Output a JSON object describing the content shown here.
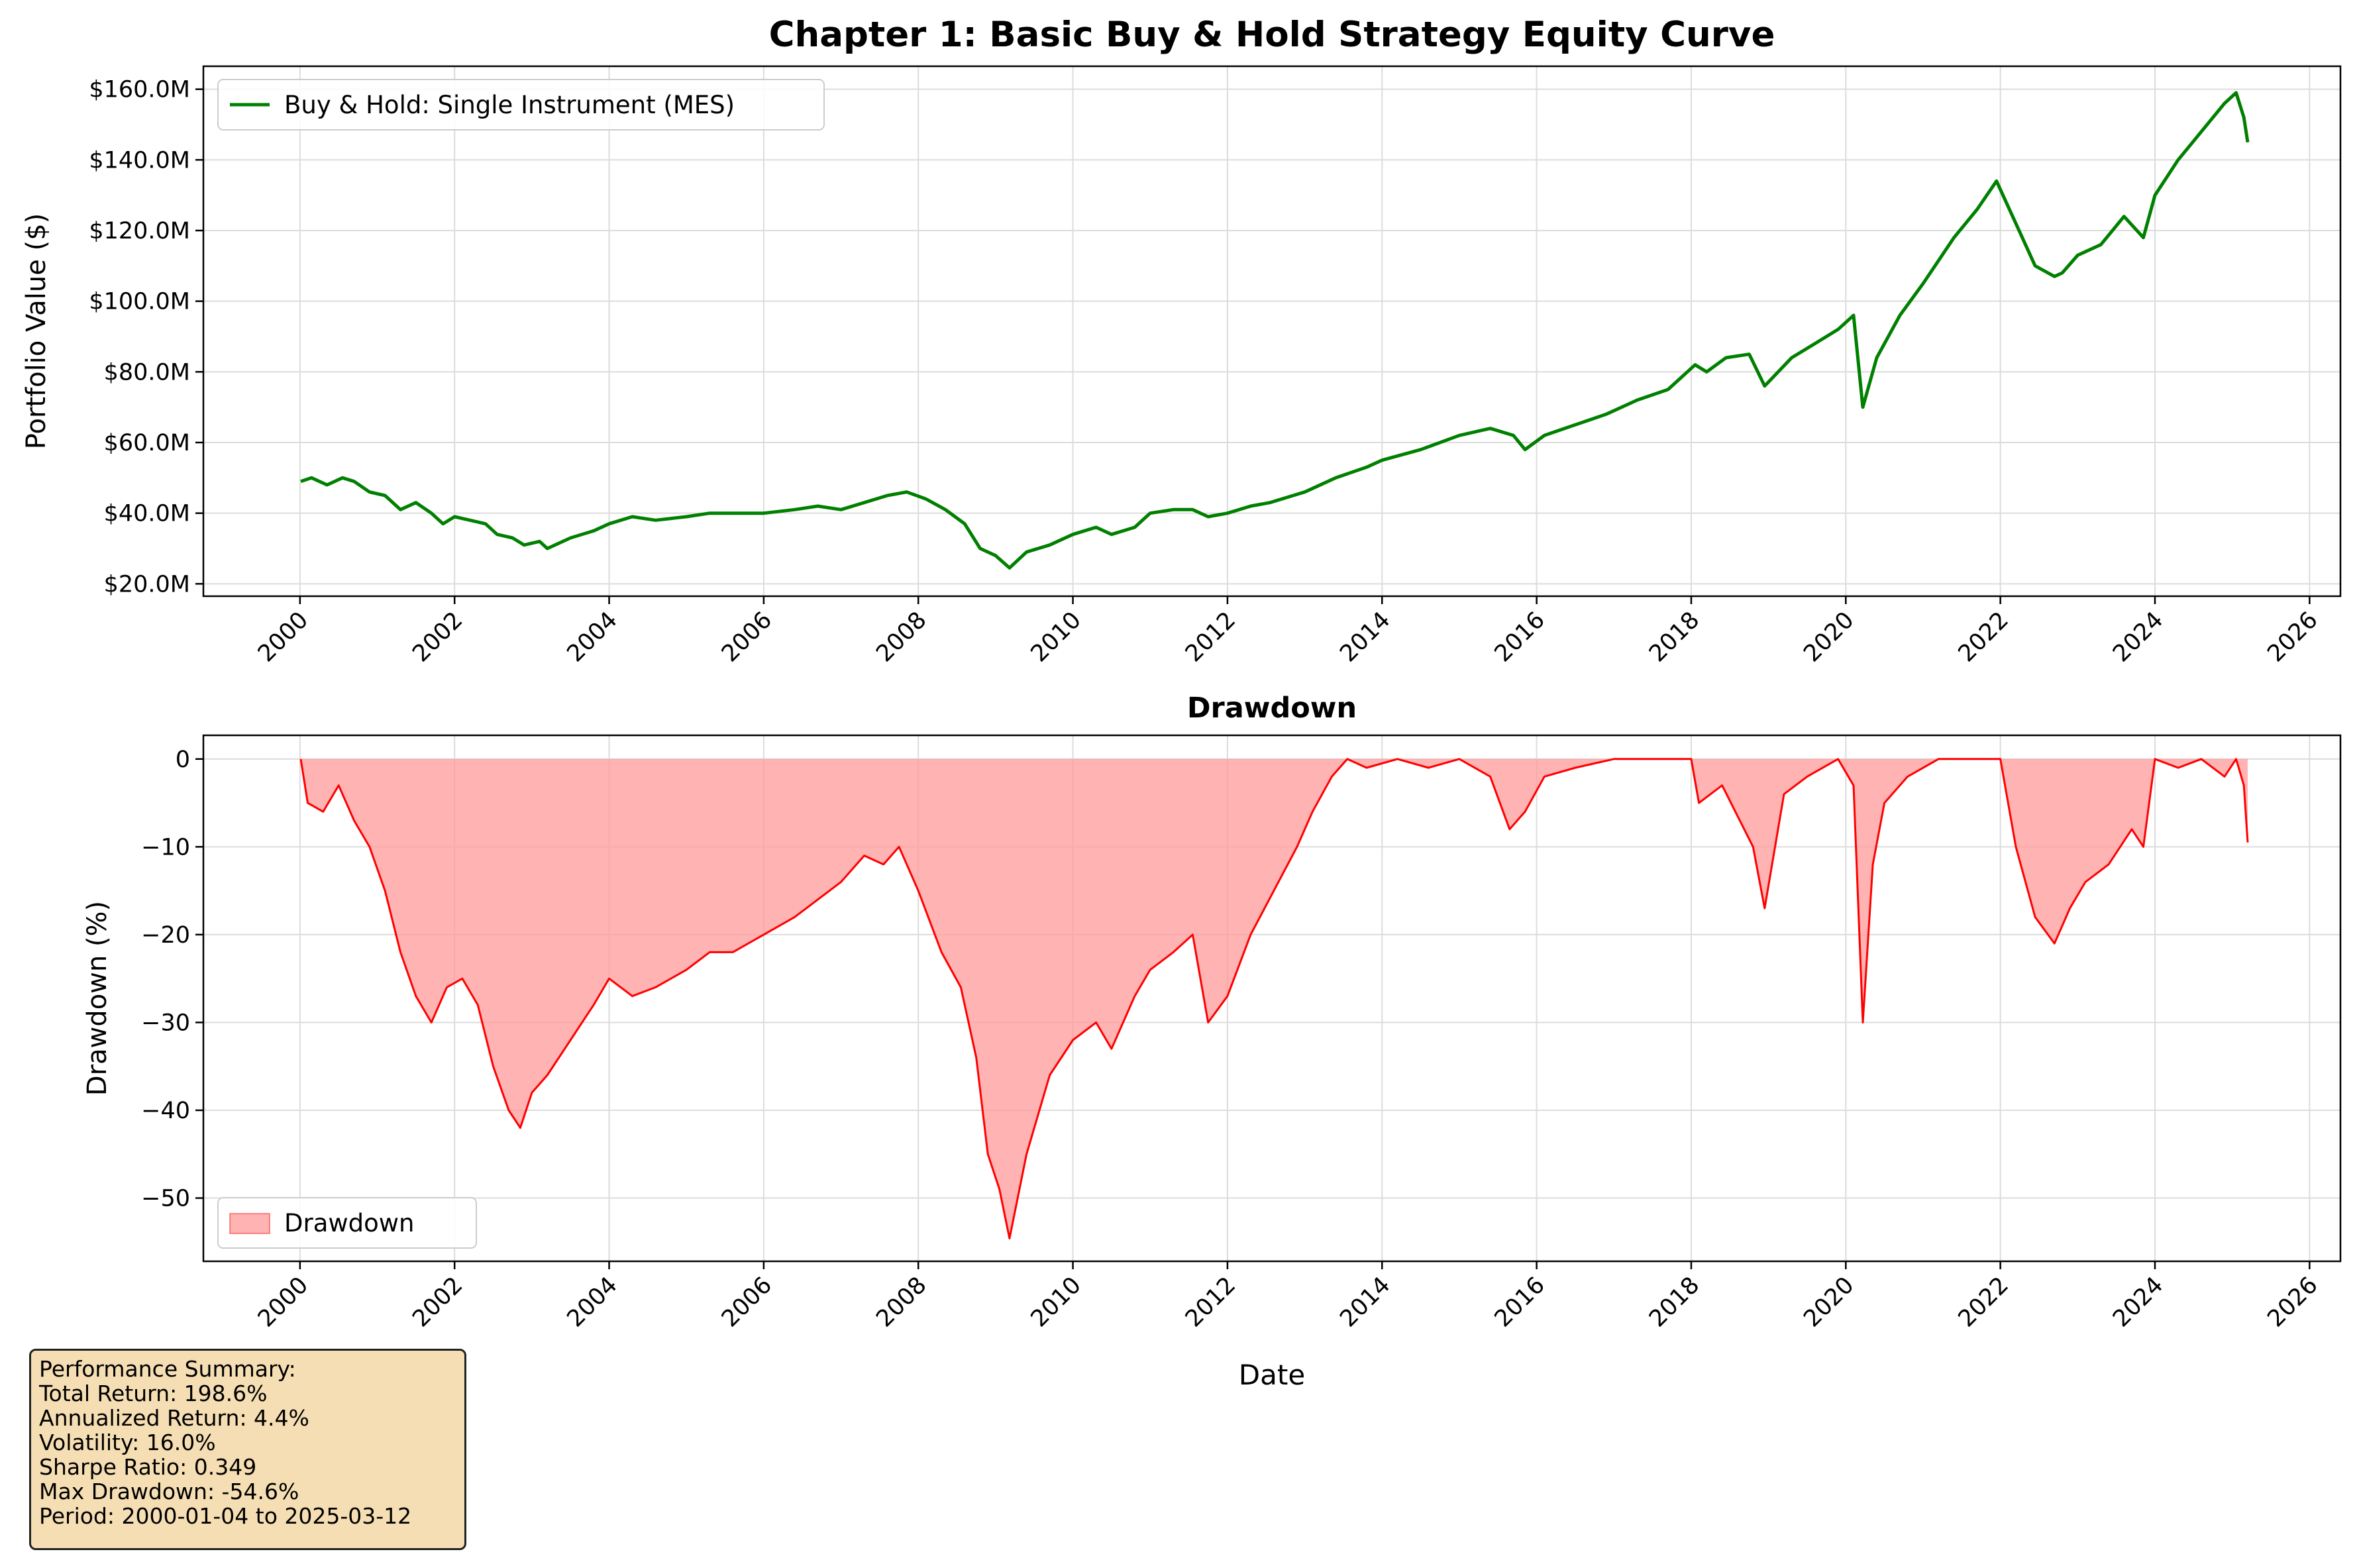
{
  "chart_data": [
    {
      "type": "line",
      "title": "Chapter 1: Basic Buy & Hold Strategy Equity Curve",
      "ylabel": "Portfolio Value ($)",
      "xlabel": "",
      "xlim": [
        1998.75,
        2026.4
      ],
      "ylim": [
        16.5,
        166.5
      ],
      "x_ticks": [
        2000,
        2002,
        2004,
        2006,
        2008,
        2010,
        2012,
        2014,
        2016,
        2018,
        2020,
        2022,
        2024,
        2026
      ],
      "x_tick_labels": [
        "2000",
        "2002",
        "2004",
        "2006",
        "2008",
        "2010",
        "2012",
        "2014",
        "2016",
        "2018",
        "2020",
        "2022",
        "2024",
        "2026"
      ],
      "y_ticks": [
        20,
        40,
        60,
        80,
        100,
        120,
        140,
        160
      ],
      "y_tick_labels": [
        "$20.0M",
        "$40.0M",
        "$60.0M",
        "$80.0M",
        "$100.0M",
        "$120.0M",
        "$140.0M",
        "$160.0M"
      ],
      "grid": true,
      "legend": "top-left",
      "series": [
        {
          "name": "Buy & Hold: Single Instrument (MES)",
          "color": "#008000",
          "x": [
            2000.01,
            2000.15,
            2000.35,
            2000.55,
            2000.7,
            2000.9,
            2001.1,
            2001.3,
            2001.5,
            2001.7,
            2001.85,
            2002.0,
            2002.2,
            2002.4,
            2002.55,
            2002.75,
            2002.9,
            2003.1,
            2003.2,
            2003.5,
            2003.8,
            2004.0,
            2004.3,
            2004.6,
            2005.0,
            2005.3,
            2005.6,
            2006.0,
            2006.4,
            2006.7,
            2007.0,
            2007.3,
            2007.6,
            2007.85,
            2008.1,
            2008.35,
            2008.6,
            2008.8,
            2009.0,
            2009.18,
            2009.4,
            2009.7,
            2010.0,
            2010.3,
            2010.5,
            2010.8,
            2011.0,
            2011.3,
            2011.55,
            2011.75,
            2012.0,
            2012.3,
            2012.55,
            2012.85,
            2013.0,
            2013.4,
            2013.8,
            2014.0,
            2014.5,
            2015.0,
            2015.4,
            2015.7,
            2015.85,
            2016.1,
            2016.5,
            2016.9,
            2017.3,
            2017.7,
            2018.05,
            2018.2,
            2018.45,
            2018.75,
            2018.95,
            2019.3,
            2019.6,
            2019.9,
            2020.1,
            2020.22,
            2020.4,
            2020.7,
            2021.0,
            2021.4,
            2021.7,
            2021.95,
            2022.2,
            2022.45,
            2022.7,
            2022.8,
            2023.0,
            2023.3,
            2023.6,
            2023.85,
            2024.0,
            2024.3,
            2024.6,
            2024.9,
            2025.05,
            2025.15,
            2025.2
          ],
          "y": [
            49,
            50,
            48,
            50,
            49,
            46,
            45,
            41,
            43,
            40,
            37,
            39,
            38,
            37,
            34,
            33,
            31,
            32,
            30,
            33,
            35,
            37,
            39,
            38,
            39,
            40,
            40,
            40,
            41,
            42,
            41,
            43,
            45,
            46,
            44,
            41,
            37,
            30,
            28,
            24.5,
            29,
            31,
            34,
            36,
            34,
            36,
            40,
            41,
            41,
            39,
            40,
            42,
            43,
            45,
            46,
            50,
            53,
            55,
            58,
            62,
            64,
            62,
            58,
            62,
            65,
            68,
            72,
            75,
            82,
            80,
            84,
            85,
            76,
            84,
            88,
            92,
            96,
            70,
            84,
            96,
            105,
            118,
            126,
            134,
            122,
            110,
            107,
            108,
            113,
            116,
            124,
            118,
            130,
            140,
            148,
            156,
            159,
            152,
            145
          ]
        }
      ]
    },
    {
      "type": "area",
      "title": "Drawdown",
      "ylabel": "Drawdown (%)",
      "xlabel": "Date",
      "xlim": [
        1998.75,
        2026.4
      ],
      "ylim": [
        -57.2,
        2.7
      ],
      "x_ticks": [
        2000,
        2002,
        2004,
        2006,
        2008,
        2010,
        2012,
        2014,
        2016,
        2018,
        2020,
        2022,
        2024,
        2026
      ],
      "x_tick_labels": [
        "2000",
        "2002",
        "2004",
        "2006",
        "2008",
        "2010",
        "2012",
        "2014",
        "2016",
        "2018",
        "2020",
        "2022",
        "2024",
        "2026"
      ],
      "y_ticks": [
        0,
        -10,
        -20,
        -30,
        -40,
        -50
      ],
      "y_tick_labels": [
        "0",
        "−10",
        "−20",
        "−30",
        "−40",
        "−50"
      ],
      "grid": true,
      "legend": "bottom-left",
      "series": [
        {
          "name": "Drawdown",
          "color": "#ff0000",
          "fill": "#ff9999",
          "x": [
            2000.01,
            2000.1,
            2000.3,
            2000.5,
            2000.7,
            2000.9,
            2001.1,
            2001.3,
            2001.5,
            2001.7,
            2001.9,
            2002.1,
            2002.3,
            2002.5,
            2002.7,
            2002.85,
            2003.0,
            2003.2,
            2003.5,
            2003.8,
            2004.0,
            2004.3,
            2004.6,
            2005.0,
            2005.3,
            2005.6,
            2006.0,
            2006.4,
            2006.7,
            2007.0,
            2007.3,
            2007.55,
            2007.75,
            2008.0,
            2008.3,
            2008.55,
            2008.75,
            2008.9,
            2009.05,
            2009.18,
            2009.4,
            2009.7,
            2010.0,
            2010.3,
            2010.5,
            2010.8,
            2011.0,
            2011.3,
            2011.55,
            2011.75,
            2012.0,
            2012.3,
            2012.6,
            2012.9,
            2013.1,
            2013.35,
            2013.55,
            2013.8,
            2014.2,
            2014.6,
            2015.0,
            2015.4,
            2015.65,
            2015.85,
            2016.1,
            2016.5,
            2017.0,
            2017.5,
            2018.0,
            2018.1,
            2018.4,
            2018.8,
            2018.95,
            2019.2,
            2019.5,
            2019.9,
            2020.1,
            2020.22,
            2020.35,
            2020.5,
            2020.8,
            2021.2,
            2021.6,
            2022.0,
            2022.2,
            2022.45,
            2022.7,
            2022.9,
            2023.1,
            2023.4,
            2023.7,
            2023.85,
            2024.0,
            2024.3,
            2024.6,
            2024.9,
            2025.05,
            2025.15,
            2025.2
          ],
          "y": [
            0,
            -5,
            -6,
            -3,
            -7,
            -10,
            -15,
            -22,
            -27,
            -30,
            -26,
            -25,
            -28,
            -35,
            -40,
            -42,
            -38,
            -36,
            -32,
            -28,
            -25,
            -27,
            -26,
            -24,
            -22,
            -22,
            -20,
            -18,
            -16,
            -14,
            -11,
            -12,
            -10,
            -15,
            -22,
            -26,
            -34,
            -45,
            -49,
            -54.6,
            -45,
            -36,
            -32,
            -30,
            -33,
            -27,
            -24,
            -22,
            -20,
            -30,
            -27,
            -20,
            -15,
            -10,
            -6,
            -2,
            0,
            -1,
            0,
            -1,
            0,
            -2,
            -8,
            -6,
            -2,
            -1,
            0,
            0,
            0,
            -5,
            -3,
            -10,
            -17,
            -4,
            -2,
            0,
            -3,
            -30,
            -12,
            -5,
            -2,
            0,
            0,
            0,
            -10,
            -18,
            -21,
            -17,
            -14,
            -12,
            -8,
            -10,
            0,
            -1,
            0,
            -2,
            0,
            -3,
            -9.5
          ]
        }
      ]
    }
  ],
  "summary": {
    "lines": [
      "Performance Summary:",
      "Total Return: 198.6%",
      "Annualized Return: 4.4%",
      "Volatility: 16.0%",
      "Sharpe Ratio: 0.349",
      "Max Drawdown: -54.6%",
      "Period: 2000-01-04 to 2025-03-12"
    ]
  }
}
